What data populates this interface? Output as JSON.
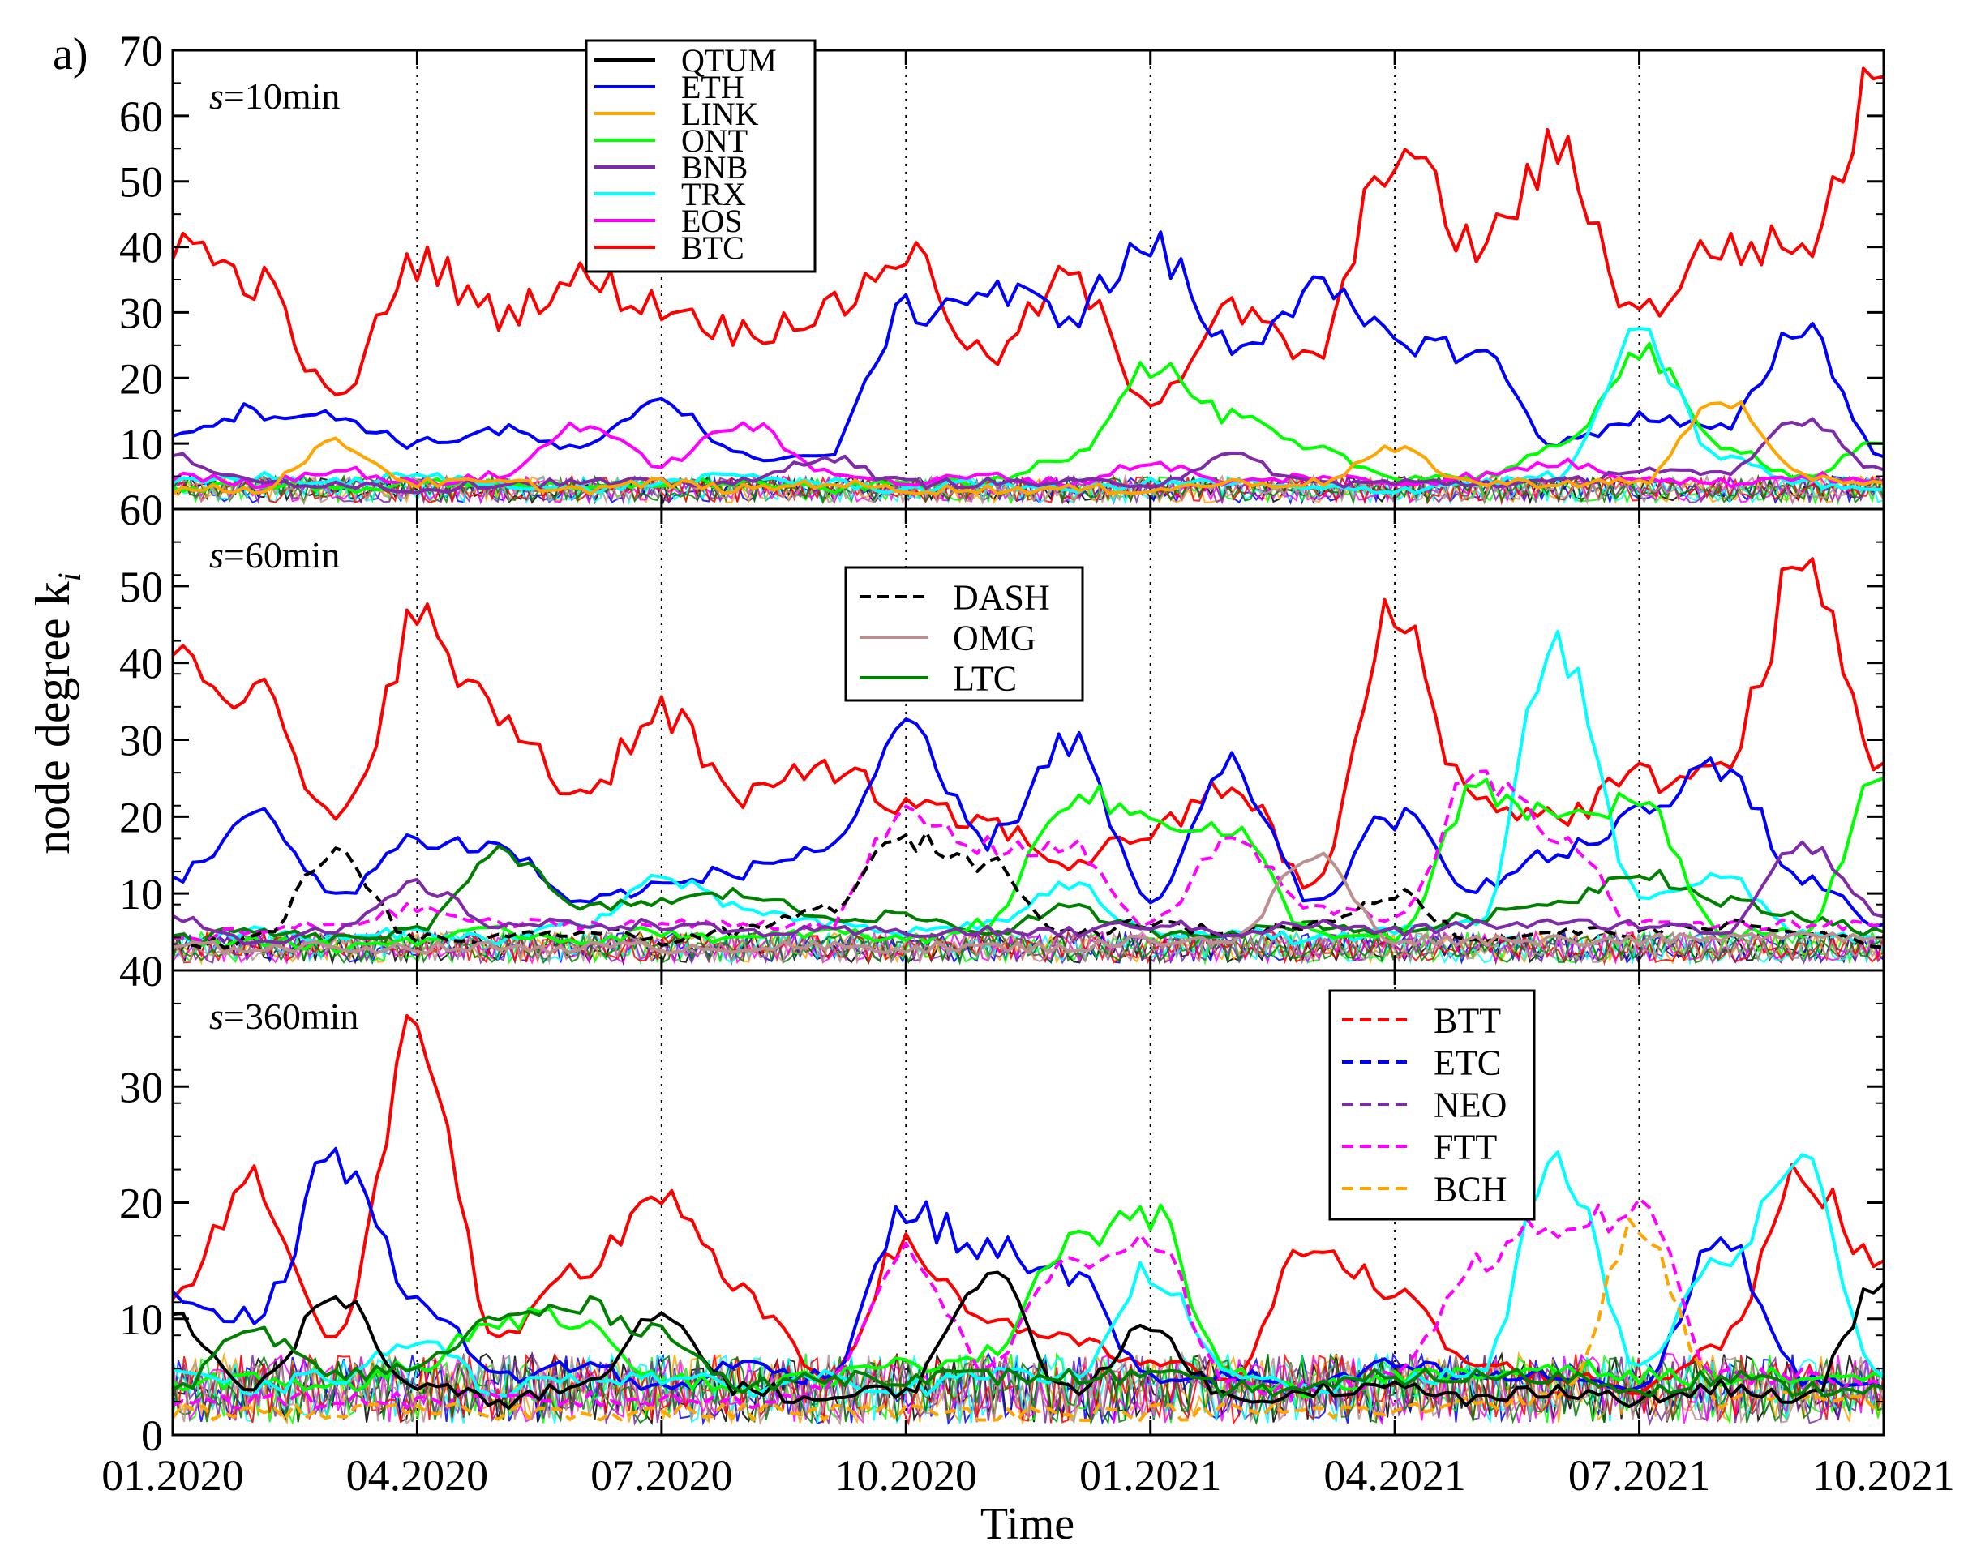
{
  "figure": {
    "panel_label": "a)",
    "xlabel": "Time",
    "ylabel": "node degree k",
    "ylabel_sub": "i",
    "x_ticks": [
      "01.2020",
      "04.2020",
      "07.2020",
      "10.2020",
      "01.2021",
      "04.2021",
      "07.2021",
      "10.2021"
    ],
    "vlines_at": [
      "04.2020",
      "07.2020",
      "10.2020",
      "01.2021",
      "04.2021",
      "07.2021"
    ]
  },
  "series_style": {
    "QTUM": {
      "color": "#000000",
      "dash": false
    },
    "ETH": {
      "color": "#0000ff",
      "dash": false
    },
    "LINK": {
      "color": "#ffa500",
      "dash": false
    },
    "ONT": {
      "color": "#00ff00",
      "dash": false
    },
    "BNB": {
      "color": "#7f2aa8",
      "dash": false
    },
    "TRX": {
      "color": "#00ffff",
      "dash": false
    },
    "EOS": {
      "color": "#ff00ff",
      "dash": false
    },
    "BTC": {
      "color": "#ff0000",
      "dash": false
    },
    "DASH": {
      "color": "#000000",
      "dash": true
    },
    "OMG": {
      "color": "#bc8f8f",
      "dash": false
    },
    "LTC": {
      "color": "#008000",
      "dash": false
    },
    "BTT": {
      "color": "#ff0000",
      "dash": true
    },
    "ETC": {
      "color": "#0000ff",
      "dash": true
    },
    "NEO": {
      "color": "#7f2aa8",
      "dash": true
    },
    "FTT": {
      "color": "#ff00ff",
      "dash": true
    },
    "BCH": {
      "color": "#ffa500",
      "dash": true
    }
  },
  "chart_data": [
    {
      "type": "line",
      "annotation": "s=10min",
      "ylim": [
        0,
        70
      ],
      "y_ticks": [
        "70",
        "60",
        "50",
        "40",
        "30",
        "20",
        "10"
      ],
      "legend": {
        "entries": [
          "QTUM",
          "ETH",
          "LINK",
          "ONT",
          "BNB",
          "TRX",
          "EOS",
          "BTC"
        ],
        "position": "top-left"
      },
      "x": [
        "01.2020",
        "02.2020",
        "03.2020",
        "04.2020",
        "05.2020",
        "06.2020",
        "07.2020",
        "08.2020",
        "09.2020",
        "10.2020",
        "11.2020",
        "12.2020",
        "01.2021",
        "02.2021",
        "03.2021",
        "04.2021",
        "05.2021",
        "06.2021",
        "07.2021",
        "08.2021",
        "09.2021",
        "10.2021"
      ],
      "series": [
        {
          "name": "BTC",
          "values": [
            41,
            35,
            17,
            38,
            30,
            35,
            31,
            27,
            30,
            39,
            23,
            35,
            17,
            30,
            23,
            55,
            40,
            54,
            30,
            40,
            40,
            66
          ]
        },
        {
          "name": "ETH",
          "values": [
            12,
            15,
            14,
            10,
            12,
            9,
            17,
            8,
            8,
            30,
            33,
            30,
            40,
            25,
            33,
            26,
            24,
            10,
            14,
            12,
            28,
            8
          ]
        },
        {
          "name": "ONT",
          "values": [
            3,
            4,
            3,
            4,
            4,
            3,
            4,
            4,
            3,
            4,
            4,
            8,
            22,
            14,
            9,
            5,
            5,
            9,
            24,
            10,
            5,
            10
          ]
        },
        {
          "name": "TRX",
          "values": [
            4,
            5,
            4,
            5,
            4,
            3,
            4,
            5,
            4,
            3,
            4,
            3,
            4,
            4,
            3,
            3,
            4,
            5,
            26,
            8,
            4,
            3
          ]
        },
        {
          "name": "EOS",
          "values": [
            5,
            4,
            6,
            4,
            5,
            13,
            7,
            13,
            6,
            4,
            5,
            4,
            7,
            4,
            5,
            4,
            5,
            7,
            5,
            4,
            5,
            4
          ]
        },
        {
          "name": "BNB",
          "values": [
            8,
            4,
            4,
            3,
            4,
            4,
            4,
            4,
            8,
            4,
            4,
            4,
            4,
            8,
            4,
            4,
            4,
            4,
            6,
            5,
            14,
            6
          ]
        },
        {
          "name": "LINK",
          "values": [
            3,
            3,
            10,
            4,
            4,
            3,
            4,
            3,
            4,
            3,
            3,
            3,
            3,
            4,
            4,
            9,
            4,
            4,
            4,
            17,
            5,
            4
          ]
        }
      ]
    },
    {
      "type": "line",
      "annotation": "s=60min",
      "ylim": [
        0,
        60
      ],
      "y_ticks": [
        "60",
        "50",
        "40",
        "30",
        "20",
        "10"
      ],
      "legend": {
        "entries": [
          "DASH",
          "OMG",
          "LTC"
        ],
        "position": "top-center"
      },
      "x": [
        "01.2020",
        "02.2020",
        "03.2020",
        "04.2020",
        "05.2020",
        "06.2020",
        "07.2020",
        "08.2020",
        "09.2020",
        "10.2020",
        "11.2020",
        "12.2020",
        "01.2021",
        "02.2021",
        "03.2021",
        "04.2021",
        "05.2021",
        "06.2021",
        "07.2021",
        "08.2021",
        "09.2021",
        "10.2021"
      ],
      "series": [
        {
          "name": "BTC",
          "values": [
            43,
            36,
            19,
            45,
            33,
            23,
            34,
            22,
            27,
            21,
            19,
            14,
            18,
            24,
            11,
            46,
            22,
            20,
            25,
            26,
            52,
            27
          ]
        },
        {
          "name": "ETH",
          "values": [
            12,
            20,
            10,
            17,
            16,
            9,
            11,
            13,
            16,
            30,
            17,
            30,
            9,
            26,
            9,
            20,
            11,
            15,
            20,
            27,
            12,
            6
          ]
        },
        {
          "name": "TRX",
          "values": [
            4,
            5,
            4,
            5,
            4,
            6,
            12,
            8,
            6,
            5,
            6,
            11,
            5,
            5,
            4,
            5,
            6,
            43,
            10,
            12,
            5,
            4
          ]
        },
        {
          "name": "LTC",
          "values": [
            4,
            5,
            4,
            5,
            16,
            8,
            9,
            10,
            7,
            7,
            5,
            8,
            5,
            5,
            6,
            5,
            7,
            9,
            13,
            9,
            7,
            5
          ]
        },
        {
          "name": "ONT",
          "values": [
            3,
            4,
            3,
            4,
            5,
            4,
            5,
            4,
            5,
            4,
            6,
            23,
            20,
            18,
            5,
            4,
            23,
            20,
            22,
            5,
            5,
            25
          ]
        },
        {
          "name": "FTT",
          "values": [
            4,
            5,
            6,
            8,
            6,
            6,
            6,
            6,
            6,
            20,
            16,
            16,
            6,
            17,
            8,
            7,
            25,
            18,
            6,
            6,
            6,
            6
          ]
        },
        {
          "name": "DASH",
          "values": [
            3,
            4,
            15,
            4,
            4,
            5,
            4,
            5,
            8,
            17,
            14,
            5,
            6,
            5,
            6,
            10,
            4,
            5,
            5,
            6,
            5,
            3
          ]
        },
        {
          "name": "OMG",
          "values": [
            3,
            3,
            3,
            3,
            3,
            3,
            3,
            3,
            3,
            3,
            3,
            3,
            4,
            4,
            15,
            4,
            4,
            4,
            4,
            4,
            5,
            4
          ]
        },
        {
          "name": "BNB",
          "values": [
            7,
            4,
            5,
            11,
            6,
            6,
            6,
            5,
            5,
            5,
            5,
            5,
            6,
            5,
            6,
            5,
            6,
            6,
            6,
            5,
            17,
            7
          ]
        }
      ]
    },
    {
      "type": "line",
      "annotation": "s=360min",
      "ylim": [
        0,
        40
      ],
      "y_ticks": [
        "40",
        "30",
        "20",
        "10",
        "0"
      ],
      "legend": {
        "entries": [
          "BTT",
          "ETC",
          "NEO",
          "FTT",
          "BCH"
        ],
        "position": "top-right"
      },
      "x": [
        "01.2020",
        "02.2020",
        "03.2020",
        "04.2020",
        "05.2020",
        "06.2020",
        "07.2020",
        "08.2020",
        "09.2020",
        "10.2020",
        "11.2020",
        "12.2020",
        "01.2021",
        "02.2021",
        "03.2021",
        "04.2021",
        "05.2021",
        "06.2021",
        "07.2021",
        "08.2021",
        "09.2021",
        "10.2021"
      ],
      "series": [
        {
          "name": "BTC",
          "values": [
            12,
            22,
            8,
            35,
            8,
            14,
            21,
            12,
            5,
            16,
            10,
            8,
            6,
            5,
            17,
            12,
            6,
            5,
            4,
            8,
            22,
            15
          ]
        },
        {
          "name": "ETH",
          "values": [
            12,
            10,
            24,
            12,
            5,
            6,
            4,
            6,
            5,
            19,
            16,
            14,
            5,
            5,
            4,
            6,
            5,
            5,
            4,
            17,
            5,
            4
          ]
        },
        {
          "name": "ONT",
          "values": [
            4,
            5,
            4,
            6,
            10,
            10,
            5,
            4,
            5,
            6,
            7,
            17,
            19,
            5,
            4,
            5,
            5,
            6,
            5,
            5,
            5,
            5
          ]
        },
        {
          "name": "TRX",
          "values": [
            5,
            4,
            5,
            8,
            4,
            5,
            5,
            4,
            5,
            4,
            5,
            5,
            14,
            5,
            4,
            5,
            5,
            24,
            6,
            15,
            23,
            5
          ]
        },
        {
          "name": "FTT",
          "values": [
            3,
            3,
            3,
            3,
            3,
            3,
            3,
            3,
            4,
            16,
            6,
            15,
            17,
            4,
            4,
            5,
            15,
            18,
            19,
            5,
            5,
            4
          ]
        },
        {
          "name": "BCH",
          "values": [
            2,
            2,
            2,
            2,
            2,
            2,
            2,
            2,
            2,
            2,
            2,
            2,
            2,
            2,
            2,
            2,
            3,
            3,
            18,
            3,
            3,
            3
          ]
        },
        {
          "name": "QTUM",
          "values": [
            10,
            4,
            12,
            4,
            3,
            4,
            10,
            4,
            3,
            4,
            14,
            4,
            9,
            3,
            4,
            4,
            3,
            4,
            3,
            4,
            3,
            13
          ]
        },
        {
          "name": "LTC",
          "values": [
            4,
            9,
            5,
            6,
            10,
            11,
            9,
            4,
            5,
            5,
            5,
            5,
            5,
            4,
            4,
            5,
            5,
            5,
            4,
            5,
            4,
            4
          ]
        }
      ]
    }
  ]
}
